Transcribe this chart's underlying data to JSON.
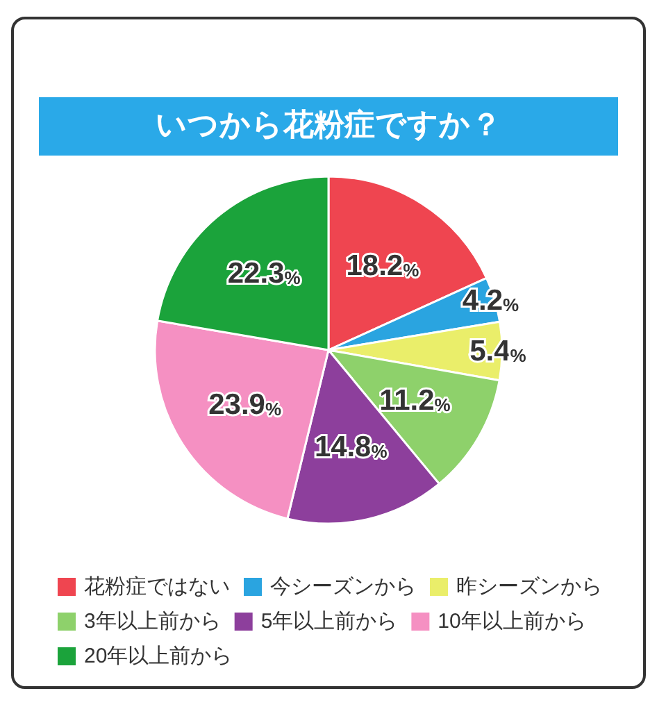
{
  "chart_data": {
    "type": "pie",
    "title": "いつから花粉症ですか？",
    "categories": [
      "花粉症ではない",
      "今シーズンから",
      "昨シーズンから",
      "3年以上前から",
      "5年以上前から",
      "10年以上前から",
      "20年以上前から"
    ],
    "values": [
      18.2,
      4.2,
      5.4,
      11.2,
      14.8,
      23.9,
      22.3
    ],
    "colors": [
      "#ef4550",
      "#2aa4e0",
      "#eaee6a",
      "#8ed16b",
      "#8d3f9c",
      "#f590c2",
      "#1ba33b"
    ],
    "value_labels": [
      "18.2%",
      "4.2%",
      "5.4%",
      "11.2%",
      "14.8%",
      "23.9%",
      "22.3%"
    ],
    "legend": "bottom"
  }
}
